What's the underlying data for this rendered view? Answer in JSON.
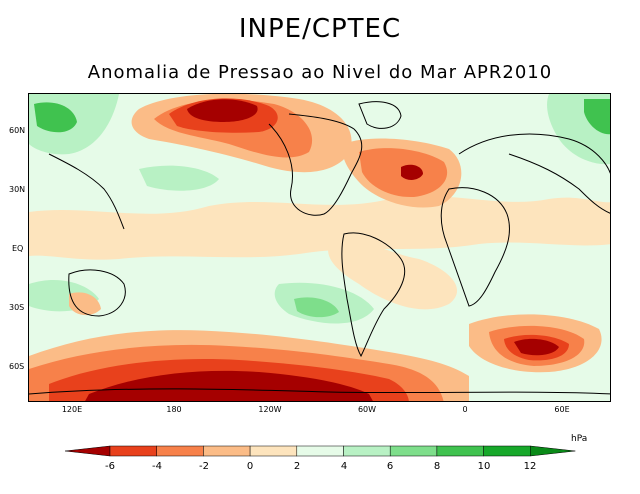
{
  "header": {
    "title": "INPE/CPTEC",
    "subtitle": "Anomalia de Pressao ao Nivel do Mar APR2010"
  },
  "axes": {
    "lat_labels": [
      "60N",
      "30N",
      "EQ",
      "30S",
      "60S"
    ],
    "lon_labels": [
      "120E",
      "180",
      "120W",
      "60W",
      "0",
      "60E"
    ]
  },
  "colorbar": {
    "unit": "hPa",
    "ticks": [
      "-6",
      "-4",
      "-2",
      "0",
      "2",
      "4",
      "6",
      "8",
      "10",
      "12"
    ],
    "colors": [
      "#a50000",
      "#e8411c",
      "#f7814a",
      "#fbbc87",
      "#fde4bd",
      "#e6fbe8",
      "#b8f1c4",
      "#7ede8b",
      "#40c24f",
      "#17a82a",
      "#0a8a18"
    ]
  }
}
